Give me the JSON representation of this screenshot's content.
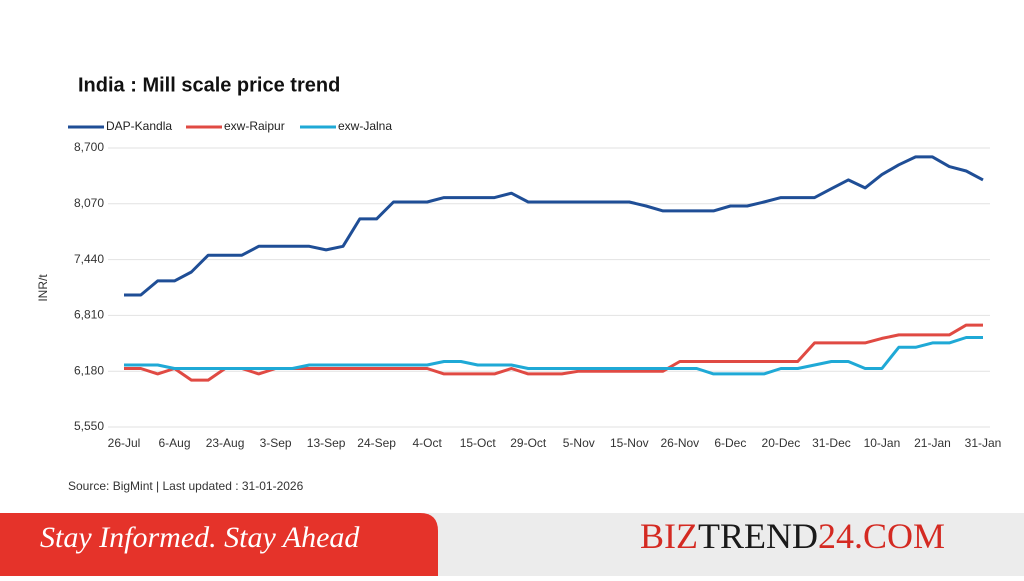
{
  "chart_data": {
    "type": "line",
    "title": "India : Mill scale price trend",
    "ylabel": "INR/t",
    "source": "Source: BigMint | Last updated : 31-01-2026",
    "categories": [
      "26-Jul",
      null,
      null,
      "6-Aug",
      null,
      null,
      "23-Aug",
      null,
      null,
      "3-Sep",
      null,
      null,
      "13-Sep",
      null,
      null,
      "24-Sep",
      null,
      null,
      "4-Oct",
      null,
      null,
      "15-Oct",
      null,
      null,
      "29-Oct",
      null,
      null,
      "5-Nov",
      null,
      null,
      "15-Nov",
      null,
      null,
      "26-Nov",
      null,
      null,
      "6-Dec",
      null,
      null,
      "20-Dec",
      null,
      null,
      "31-Dec",
      null,
      null,
      "10-Jan",
      null,
      null,
      "21-Jan",
      null,
      null,
      "31-Jan"
    ],
    "series": [
      {
        "name": "DAP-Kandla",
        "color": "#1f4e96",
        "values": [
          7040,
          7040,
          7200,
          7200,
          7300,
          7490,
          7490,
          7490,
          7590,
          7590,
          7590,
          7590,
          7550,
          7590,
          7900,
          7900,
          8090,
          8090,
          8090,
          8140,
          8140,
          8140,
          8140,
          8190,
          8090,
          8090,
          8090,
          8090,
          8090,
          8090,
          8090,
          8045,
          7990,
          7990,
          7990,
          7990,
          8045,
          8045,
          8090,
          8140,
          8140,
          8140,
          8240,
          8340,
          8250,
          8400,
          8510,
          8600,
          8600,
          8490,
          8440,
          8340
        ]
      },
      {
        "name": "exw-Raipur",
        "color": "#e04a43",
        "values": [
          6210,
          6210,
          6150,
          6210,
          6080,
          6080,
          6210,
          6210,
          6150,
          6210,
          6210,
          6210,
          6210,
          6210,
          6210,
          6210,
          6210,
          6210,
          6210,
          6150,
          6150,
          6150,
          6150,
          6210,
          6150,
          6150,
          6150,
          6180,
          6180,
          6180,
          6180,
          6180,
          6180,
          6290,
          6290,
          6290,
          6290,
          6290,
          6290,
          6290,
          6290,
          6500,
          6500,
          6500,
          6500,
          6550,
          6590,
          6590,
          6590,
          6590,
          6700,
          6700
        ]
      },
      {
        "name": "exw-Jalna",
        "color": "#1fa9d6",
        "values": [
          6250,
          6250,
          6250,
          6210,
          6210,
          6210,
          6210,
          6210,
          6210,
          6210,
          6210,
          6250,
          6250,
          6250,
          6250,
          6250,
          6250,
          6250,
          6250,
          6290,
          6290,
          6250,
          6250,
          6250,
          6210,
          6210,
          6210,
          6210,
          6210,
          6210,
          6210,
          6210,
          6210,
          6210,
          6210,
          6150,
          6150,
          6150,
          6150,
          6210,
          6210,
          6250,
          6290,
          6290,
          6210,
          6210,
          6450,
          6450,
          6500,
          6500,
          6560,
          6560
        ]
      }
    ],
    "ylim": [
      5550,
      8700
    ],
    "yticks": [
      {
        "value": 5550,
        "label": "5,550"
      },
      {
        "value": 6180,
        "label": "6,180"
      },
      {
        "value": 6810,
        "label": "6,810"
      },
      {
        "value": 7440,
        "label": "7,440"
      },
      {
        "value": 8070,
        "label": "8,070"
      },
      {
        "value": 8700,
        "label": "8,700"
      }
    ],
    "grid": true
  },
  "banner": {
    "tagline": "Stay Informed. Stay Ahead",
    "brand": [
      "BIZ",
      "TREND",
      "24.COM"
    ]
  }
}
